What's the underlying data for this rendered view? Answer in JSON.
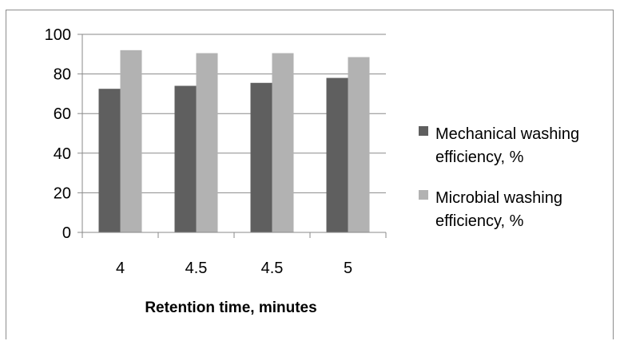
{
  "chart_data": {
    "type": "bar",
    "categories": [
      "4",
      "4.5",
      "4.5",
      "5"
    ],
    "series": [
      {
        "name": "Mechanical washing efficiency, %",
        "values": [
          72.5,
          74,
          75.5,
          78
        ],
        "color": "#5f5f5f"
      },
      {
        "name": "Microbial washing efficiency, %",
        "values": [
          92,
          90.5,
          90.5,
          88.5
        ],
        "color": "#b2b2b2"
      }
    ],
    "title": "",
    "xlabel": "Retention time, minutes",
    "ylabel": "",
    "ylim": [
      0,
      100
    ],
    "yticks": [
      "0",
      "20",
      "40",
      "60",
      "80",
      "100"
    ],
    "grid": true,
    "legend_position": "right",
    "legend_lines": [
      [
        "Mechanical washing",
        "efficiency, %"
      ],
      [
        "Microbial washing",
        "efficiency, %"
      ]
    ]
  }
}
